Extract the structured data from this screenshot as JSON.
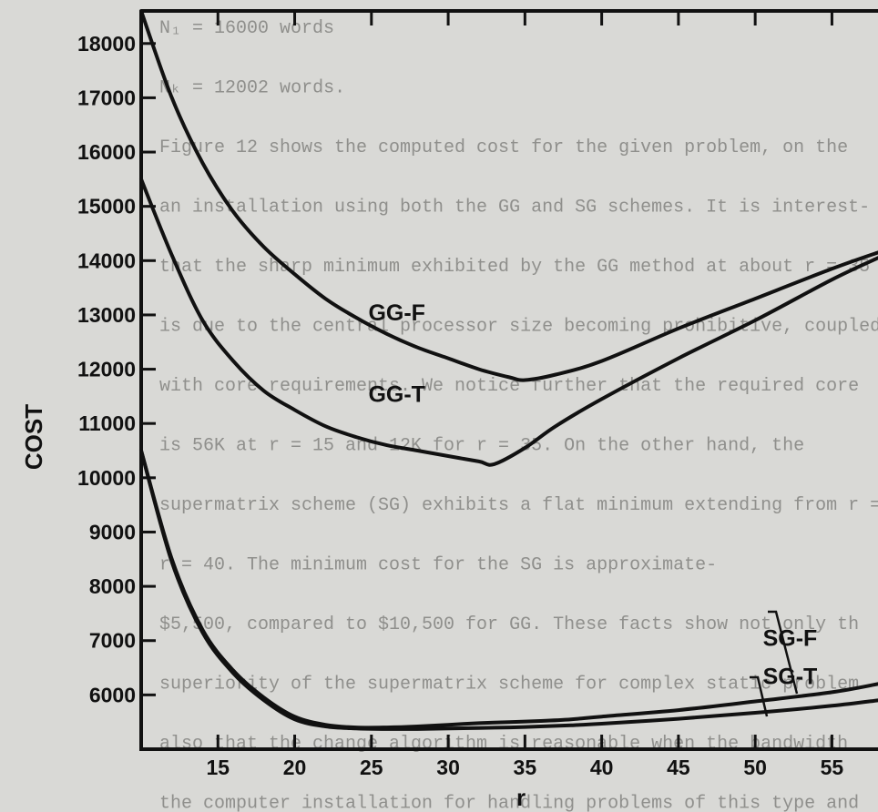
{
  "background_text": [
    "N₁ = 16000 words",
    "Nₖ = 12002 words.",
    "Figure 12 shows the computed cost for the given problem, on the",
    "an installation using both the GG and SG schemes. It is interest-",
    "that the sharp minimum exhibited by the GG method at about r = 35",
    "is due to the central processor size becoming prohibitive, coupled",
    "with core requirements. We notice further that the required core",
    "is 56K at r = 15 and 12K for r = 35. On the other hand, the",
    "supermatrix scheme (SG) exhibits a flat minimum extending from r = 2",
    "r = 40. The minimum cost for the SG is approximate-",
    "$5,500, compared to $10,500 for GG. These facts show not only th",
    "superiority of the supermatrix scheme for complex static problem",
    "also that the change algorithm is reasonable when the bandwidth",
    "the computer installation for handling problems of this type and"
  ],
  "chart_data": {
    "type": "line",
    "title": "",
    "xlabel": "r",
    "ylabel": "COST",
    "xlim": [
      10,
      58
    ],
    "ylim": [
      5000,
      18600
    ],
    "x_ticks": [
      15,
      20,
      25,
      30,
      35,
      40,
      45,
      50,
      55
    ],
    "y_ticks": [
      6000,
      7000,
      8000,
      9000,
      10000,
      11000,
      12000,
      13000,
      14000,
      15000,
      16000,
      17000,
      18000
    ],
    "x_tick_labels": [
      "15",
      "20",
      "25",
      "30",
      "35",
      "40",
      "45",
      "50",
      "55"
    ],
    "y_tick_labels": [
      "6000",
      "7000",
      "8000",
      "9000",
      "10000",
      "11000",
      "12000",
      "13000",
      "14000",
      "15000",
      "16000",
      "17000",
      "18000"
    ],
    "grid": false,
    "legend": "none",
    "series": [
      {
        "name": "GG-F",
        "x": [
          10,
          12,
          14,
          16,
          18,
          20,
          22,
          24,
          26,
          28,
          30,
          32,
          34,
          35,
          37,
          40,
          45,
          50,
          55,
          58
        ],
        "y": [
          18600,
          17000,
          15800,
          14900,
          14250,
          13750,
          13300,
          12950,
          12650,
          12400,
          12200,
          12000,
          11850,
          11800,
          11900,
          12150,
          12750,
          13300,
          13850,
          14150
        ]
      },
      {
        "name": "GG-T",
        "x": [
          10,
          12,
          14,
          16,
          18,
          20,
          22,
          24,
          26,
          28,
          30,
          32,
          33,
          35,
          37,
          40,
          45,
          50,
          55,
          58
        ],
        "y": [
          15500,
          14100,
          12900,
          12150,
          11600,
          11250,
          10950,
          10750,
          10600,
          10500,
          10400,
          10300,
          10250,
          10550,
          10950,
          11450,
          12200,
          12900,
          13650,
          14050
        ]
      },
      {
        "name": "SG-F",
        "x": [
          10,
          12,
          14,
          16,
          18,
          20,
          22,
          24,
          26,
          28,
          30,
          32,
          34,
          36,
          38,
          40,
          45,
          50,
          55,
          58
        ],
        "y": [
          10500,
          8500,
          7200,
          6450,
          5950,
          5600,
          5450,
          5400,
          5400,
          5420,
          5450,
          5480,
          5500,
          5520,
          5550,
          5600,
          5720,
          5880,
          6050,
          6200
        ]
      },
      {
        "name": "SG-T",
        "x": [
          10,
          12,
          14,
          16,
          18,
          20,
          22,
          24,
          26,
          28,
          30,
          32,
          34,
          36,
          38,
          40,
          45,
          50,
          55,
          58
        ],
        "y": [
          10500,
          8450,
          7150,
          6400,
          5900,
          5550,
          5420,
          5380,
          5370,
          5370,
          5380,
          5390,
          5400,
          5420,
          5440,
          5470,
          5560,
          5670,
          5800,
          5900
        ]
      }
    ],
    "annotations": [
      {
        "text": "GG-F",
        "x": 24.8,
        "y": 12900
      },
      {
        "text": "GG-T",
        "x": 24.8,
        "y": 11400
      },
      {
        "text": "SG-F",
        "x": 50.5,
        "y": 6900
      },
      {
        "text": "SG-T",
        "x": 50.5,
        "y": 6200
      }
    ]
  }
}
